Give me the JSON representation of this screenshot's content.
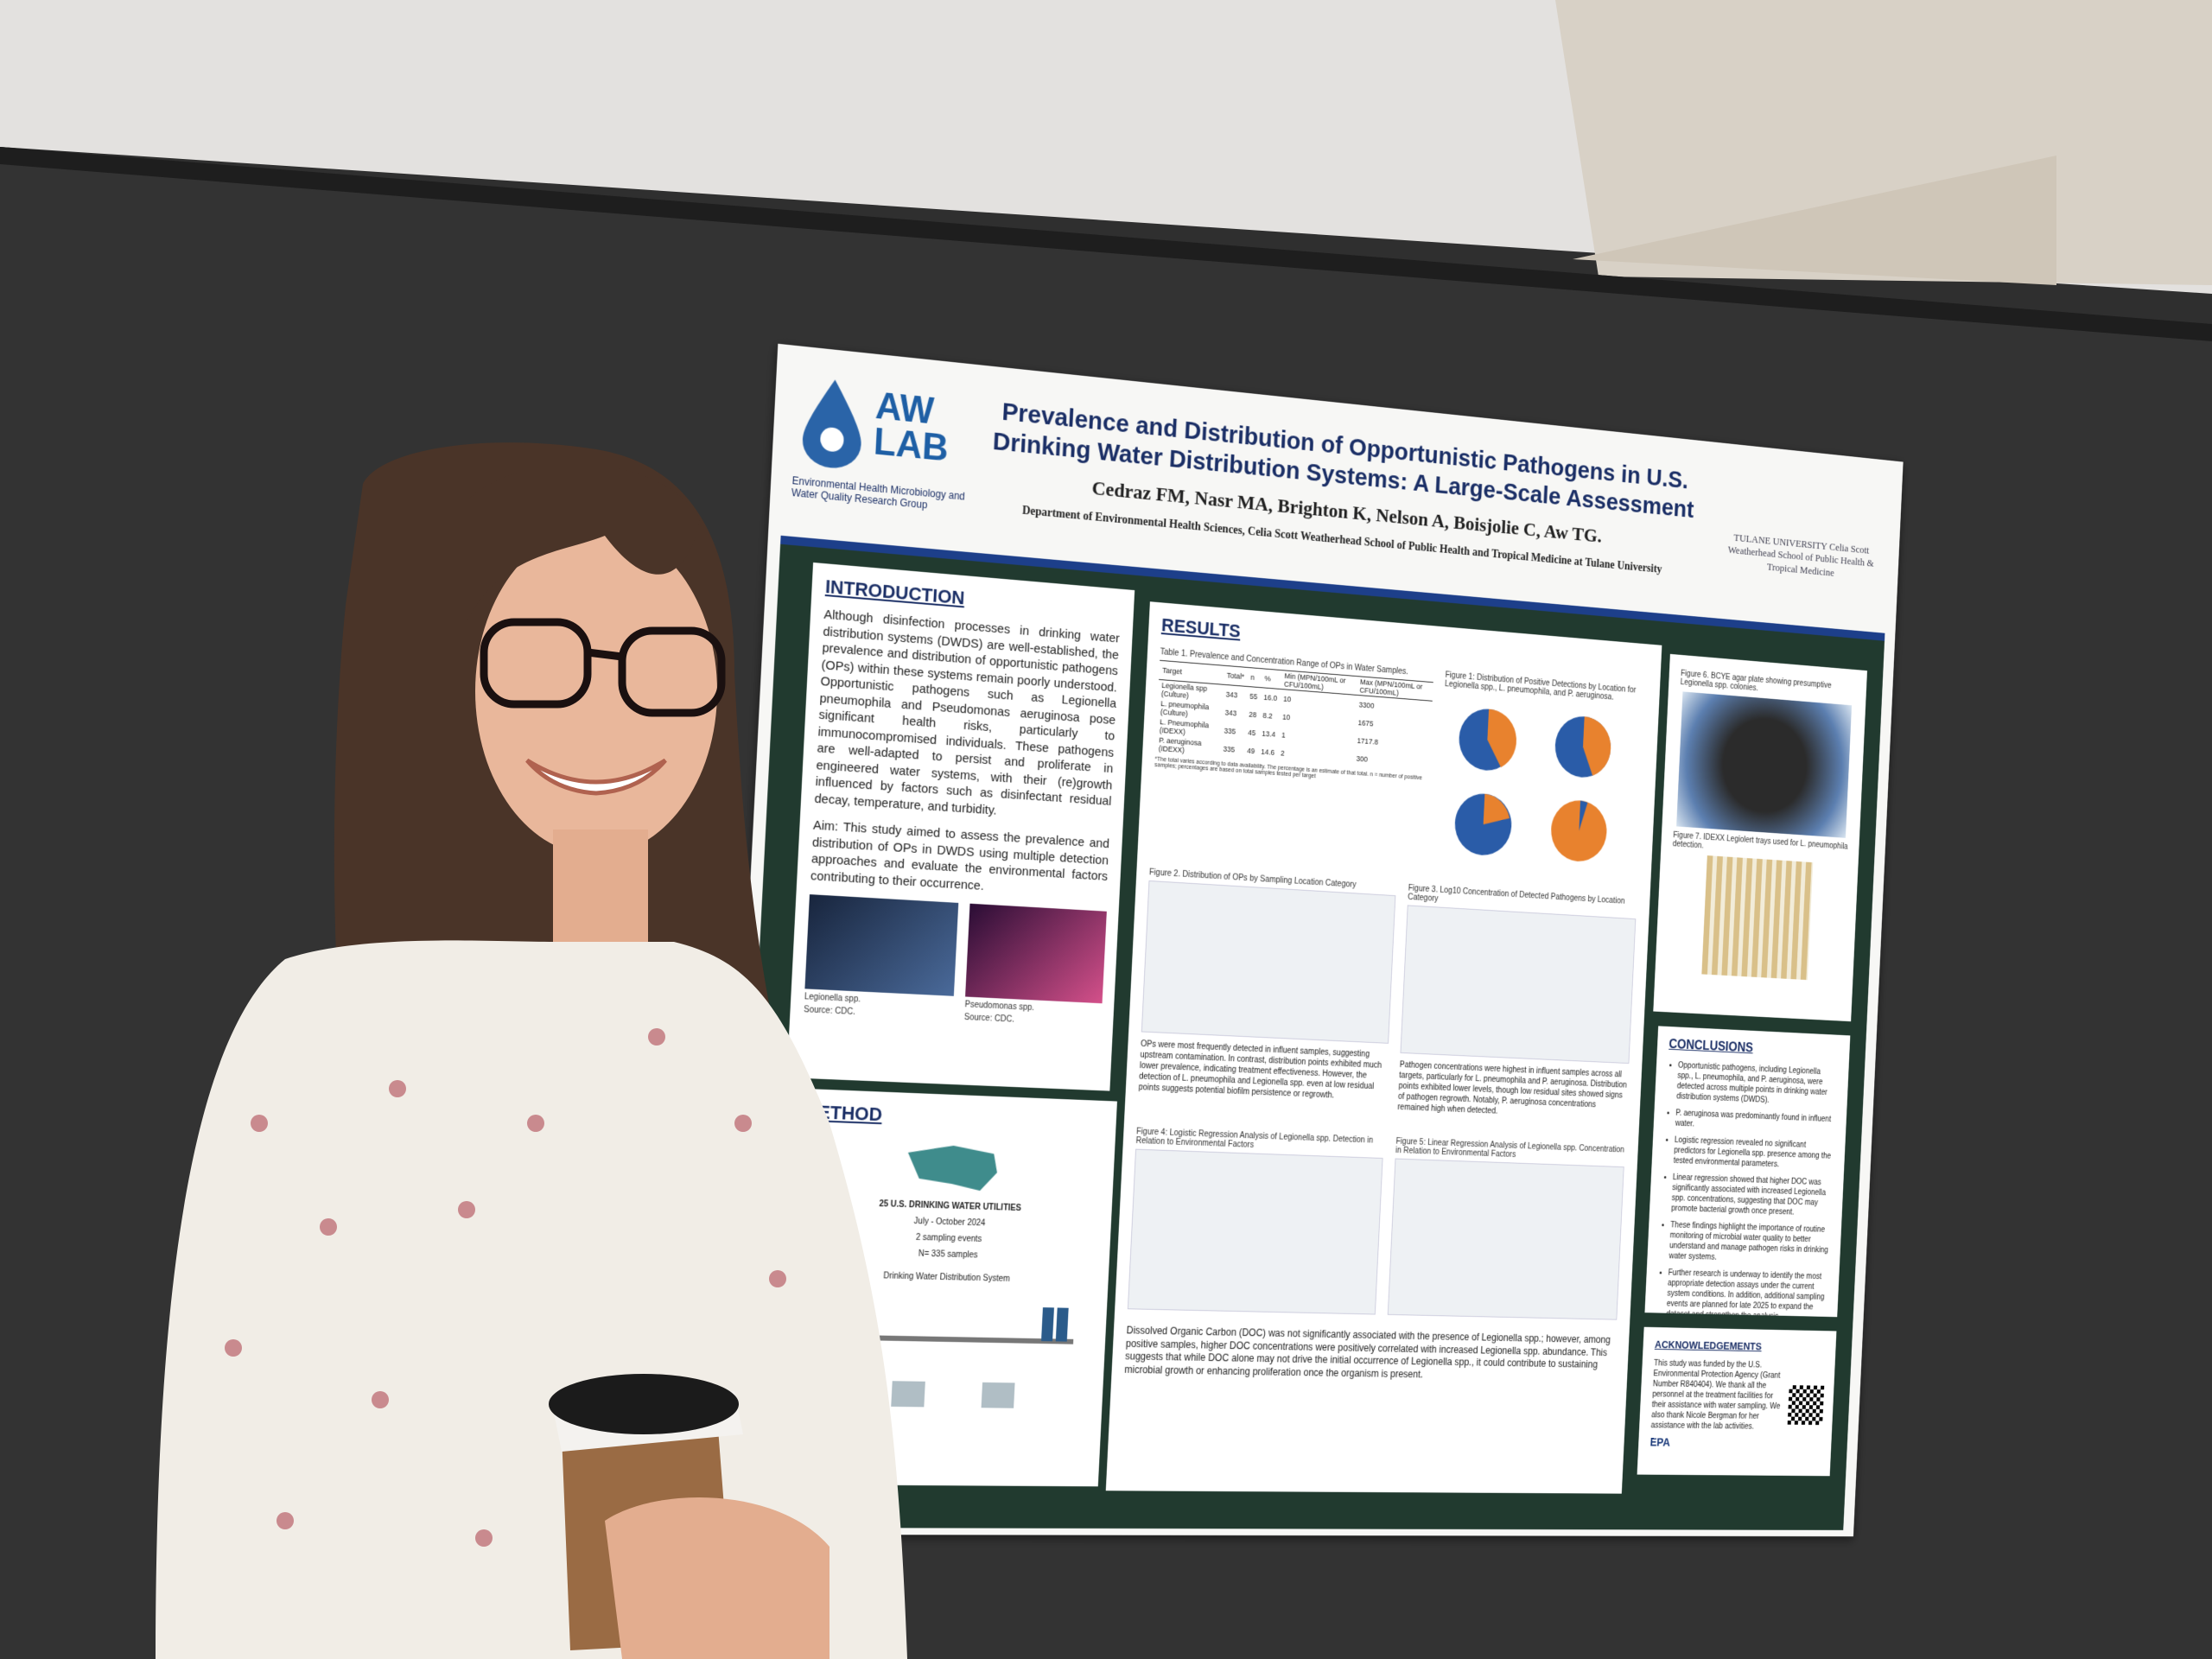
{
  "poster": {
    "logo": {
      "name": "AW LAB",
      "group": "Environmental Health Microbiology and Water Quality Research Group"
    },
    "title": "Prevalence and Distribution of Opportunistic Pathogens in U.S. Drinking Water Distribution Systems: A Large-Scale Assessment",
    "authors": "Cedraz FM, Nasr MA, Brighton K, Nelson A, Boisjolie C, Aw TG.",
    "affiliation": "Department of Environmental Health Sciences, Celia Scott Weatherhead School of Public Health and Tropical Medicine at Tulane University",
    "university": "TULANE UNIVERSITY Celia Scott Weatherhead School of Public Health & Tropical Medicine",
    "introduction": {
      "heading": "INTRODUCTION",
      "paragraphs": [
        "Although disinfection processes in drinking water distribution systems (DWDS) are well-established, the prevalence and distribution of opportunistic pathogens (OPs) within these systems remain poorly understood. Opportunistic pathogens such as Legionella pneumophila and Pseudomonas aeruginosa pose significant health risks, particularly to immunocompromised individuals. These pathogens are well-adapted to persist and proliferate in engineered water systems, with their (re)growth influenced by factors such as disinfectant residual decay, temperature, and turbidity.",
        "Aim: This study aimed to assess the prevalence and distribution of OPs in DWDS using multiple detection approaches and evaluate the environmental factors contributing to their occurrence."
      ],
      "captions": [
        "Legionella spp.",
        "Source: CDC.",
        "Pseudomonas spp.",
        "Source: CDC."
      ]
    },
    "method": {
      "heading": "METHOD",
      "lines": [
        "25 U.S. DRINKING WATER UTILITIES",
        "July - October 2024",
        "2 sampling events",
        "N= 335 samples",
        "Drinking Water Distribution System"
      ]
    },
    "results": {
      "heading": "RESULTS",
      "table_caption": "Table 1. Prevalence and Concentration Range of OPs in Water Samples.",
      "table": {
        "header": [
          "Target",
          "Total*",
          "n",
          "%",
          "Min (MPN/100mL or CFU/100mL)",
          "Max (MPN/100mL or CFU/100mL)"
        ],
        "rows": [
          [
            "Legionella spp (Culture)",
            "343",
            "55",
            "16.0",
            "10",
            "3300"
          ],
          [
            "L. pneumophila (Culture)",
            "343",
            "28",
            "8.2",
            "10",
            "1675"
          ],
          [
            "L. Pneumophila (IDEXX)",
            "335",
            "45",
            "13.4",
            "1",
            "1717.8"
          ],
          [
            "P. aeruginosa (IDEXX)",
            "335",
            "49",
            "14.6",
            "2",
            "300"
          ]
        ]
      },
      "table_note": "*The total varies according to data availability. The percentage is an estimate of that total. n = number of positive samples; percentages are based on total samples tested per target",
      "figures": [
        "Figure 1: Distribution of Positive Detections by Location for Legionella spp., L. pneumophila, and P. aeruginosa.",
        "Figure 2. Distribution of OPs by Sampling Location Category",
        "Figure 3. Log10 Concentration of Detected Pathogens by Location Category",
        "Figure 4: Logistic Regression Analysis of Legionella spp. Detection in Relation to Environmental Factors",
        "Figure 5: Linear Regression Analysis of Legionella spp. Concentration in Relation to Environmental Factors"
      ],
      "paragraphs": [
        "OPs were most frequently detected in influent samples, suggesting upstream contamination. In contrast, distribution points exhibited much lower prevalence, indicating treatment effectiveness. However, the detection of L. pneumophila and Legionella spp. even at low residual points suggests potential biofilm persistence or regrowth.",
        "Pathogen concentrations were highest in influent samples across all targets, particularly for L. pneumophila and P. aeruginosa. Distribution points exhibited lower levels, though low residual sites showed signs of pathogen regrowth. Notably, P. aeruginosa concentrations remained high when detected.",
        "Dissolved Organic Carbon (DOC) was not significantly associated with the presence of Legionella spp.; however, among positive samples, higher DOC concentrations were positively correlated with increased Legionella spp. abundance. This suggests that while DOC alone may not drive the initial occurrence of Legionella spp., it could contribute to sustaining microbial growth or enhancing proliferation once the organism is present."
      ]
    },
    "side_figures": [
      "Figure 6. BCYE agar plate showing presumptive Legionella spp. colonies.",
      "Figure 7. IDEXX Legiolert trays used for L. pneumophila detection."
    ],
    "conclusions": {
      "heading": "CONCLUSIONS",
      "items": [
        "Opportunistic pathogens, including Legionella spp., L. pneumophila, and P. aeruginosa, were detected across multiple points in drinking water distribution systems (DWDS).",
        "P. aeruginosa was predominantly found in influent water.",
        "Logistic regression revealed no significant predictors for Legionella spp. presence among the tested environmental parameters.",
        "Linear regression showed that higher DOC was significantly associated with increased Legionella spp. concentrations, suggesting that DOC may promote bacterial growth once present.",
        "These findings highlight the importance of routine monitoring of microbial water quality to better understand and manage pathogen risks in drinking water systems.",
        "Further research is underway to identify the most appropriate detection assays under the current system conditions. In addition, additional sampling events are planned for late 2025 to expand the dataset and strengthen the analysis."
      ]
    },
    "acknowledgements": {
      "heading": "ACKNOWLEDGEMENTS",
      "text": "This study was funded by the U.S. Environmental Protection Agency (Grant Number R840404). We thank all the personnel at the treatment facilities for their assistance with water sampling. We also thank Nicole Bergman for her assistance with the lab activities.",
      "logo": "EPA"
    }
  }
}
